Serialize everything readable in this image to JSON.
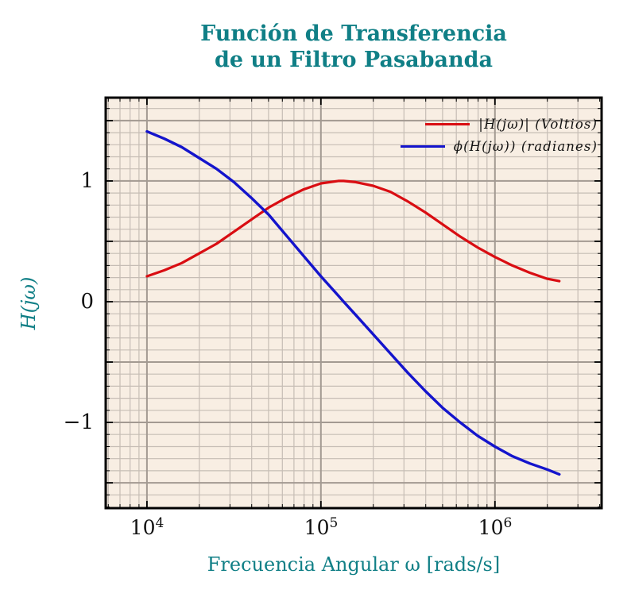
{
  "title": {
    "line1": "Función de Transferencia",
    "line2": "de un Filtro Pasabanda"
  },
  "axes": {
    "x": {
      "label": "Frecuencia Angular ω [rads/s]"
    },
    "y": {
      "label": "H(jω)"
    }
  },
  "legend": {
    "items": [
      {
        "label": "|H(jω)| (Voltios)",
        "series": "magnitude",
        "color": "#d90d12"
      },
      {
        "label": "ϕ(H(jω)) (radianes)",
        "series": "phase",
        "color": "#1414cc"
      }
    ],
    "position": "top right"
  },
  "colors": {
    "title_teal": "#107f86",
    "axis_label_teal": "#107f86",
    "plot_background": "#f8eee3",
    "grid_minor": "#c6bdb5",
    "grid_major": "#a39a92",
    "frame": "#000000",
    "curve_magnitude": "#d90d12",
    "curve_phase": "#1414cc",
    "tick_text": "#111111"
  },
  "chart_data": {
    "type": "line",
    "title": "Función de Transferencia de un Filtro Pasabanda",
    "xlabel": "Frecuencia Angular ω [rads/s]",
    "ylabel": "H(jω)",
    "grid": true,
    "legend_position": "top right",
    "x_axis": {
      "scale": "log",
      "log_min": 3.763,
      "log_max": 6.613,
      "tick_base": "10",
      "tick_exponents": [
        4,
        5,
        6
      ],
      "minor_grid_mantissas": [
        2,
        3,
        4,
        5,
        6,
        7,
        8,
        9
      ]
    },
    "y_axis": {
      "min": -1.71,
      "max": 1.69,
      "tick_values": [
        1,
        0,
        -1
      ],
      "tick_labels": [
        "1",
        "0",
        "−1"
      ],
      "minor_step": 0.1,
      "major_step": 0.5
    },
    "series": [
      {
        "name": "|H(jω)| (Voltios)",
        "unit": "Voltios",
        "color": "#d90d12",
        "x": [
          10000,
          12589,
          15849,
          19953,
          25119,
          31623,
          39811,
          50119,
          63096,
          79433,
          100000,
          125893,
          135000,
          158489,
          199526,
          251189,
          316228,
          398107,
          501187,
          630957,
          794328,
          1000000,
          1258925,
          1584893,
          1995262,
          2344229
        ],
        "y": [
          0.21,
          0.26,
          0.32,
          0.4,
          0.48,
          0.58,
          0.68,
          0.78,
          0.86,
          0.93,
          0.98,
          1.0,
          1.0,
          0.99,
          0.96,
          0.91,
          0.83,
          0.74,
          0.64,
          0.54,
          0.45,
          0.37,
          0.3,
          0.24,
          0.19,
          0.17
        ]
      },
      {
        "name": "ϕ(H(jω)) (radianes)",
        "unit": "radianes",
        "color": "#1414cc",
        "x": [
          10000,
          12589,
          15849,
          19953,
          25119,
          31623,
          39811,
          50119,
          63096,
          79433,
          100000,
          125893,
          135000,
          158489,
          199526,
          251189,
          316228,
          398107,
          501187,
          630957,
          794328,
          1000000,
          1258925,
          1584893,
          1995262,
          2344229
        ],
        "y": [
          1.41,
          1.35,
          1.28,
          1.19,
          1.1,
          0.99,
          0.86,
          0.72,
          0.55,
          0.38,
          0.21,
          0.05,
          0.0,
          -0.11,
          -0.27,
          -0.43,
          -0.59,
          -0.74,
          -0.88,
          -1.0,
          -1.11,
          -1.2,
          -1.28,
          -1.34,
          -1.39,
          -1.43
        ]
      }
    ]
  }
}
